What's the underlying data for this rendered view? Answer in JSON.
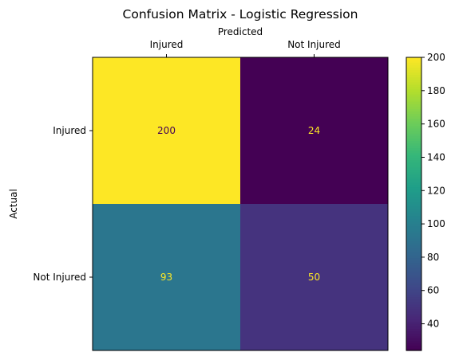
{
  "chart_data": {
    "type": "heatmap",
    "title": "Confusion Matrix - Logistic Regression",
    "xlabel": "Predicted",
    "ylabel": "Actual",
    "x_categories": [
      "Injured",
      "Not Injured"
    ],
    "y_categories": [
      "Injured",
      "Not Injured"
    ],
    "values": [
      [
        200,
        24
      ],
      [
        93,
        50
      ]
    ],
    "colormap": "viridis",
    "colorbar": {
      "range": [
        24,
        200
      ],
      "ticks": [
        40,
        60,
        80,
        100,
        120,
        140,
        160,
        180,
        200
      ],
      "tick_labels": [
        "40",
        "60",
        "80",
        "100",
        "120",
        "140",
        "160",
        "180",
        "200"
      ]
    },
    "x_axis_position": "top",
    "grid": false
  }
}
